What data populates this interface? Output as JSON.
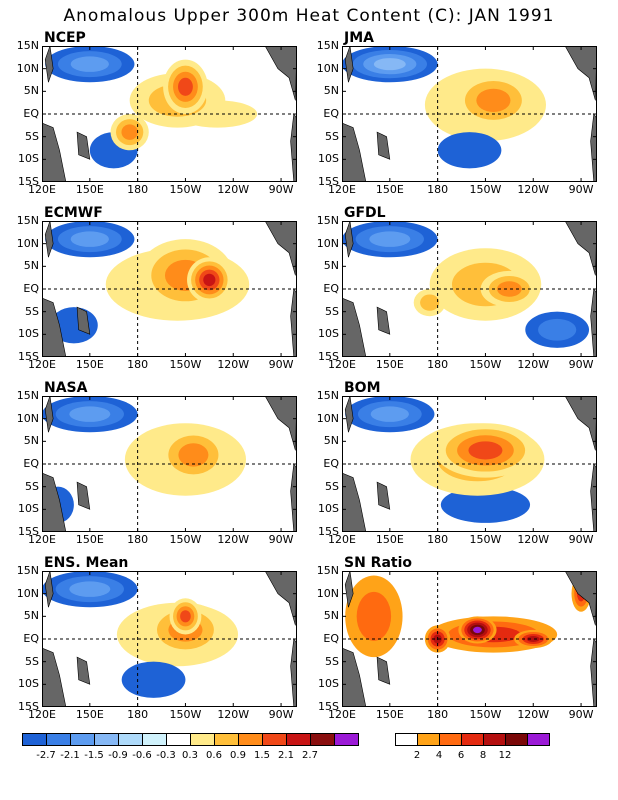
{
  "title": "Anomalous Upper 300m Heat Content (C): JAN 1991",
  "colors": {
    "land": "#666666",
    "neg": [
      "#1e62d6",
      "#3a7fe6",
      "#5d9cf0",
      "#86b8f5",
      "#aedafa",
      "#d0f2fc"
    ],
    "pos": [
      "#ffea8a",
      "#ffbf3a",
      "#ff8c1a",
      "#f04818",
      "#c81414",
      "#8a0f0f"
    ],
    "sn": [
      "#ffffff",
      "#ffa318",
      "#ff6a10",
      "#e42a10",
      "#b40f0f",
      "#7a0808",
      "#9b1ad6"
    ]
  },
  "chart_data": [
    {
      "name": "NCEP",
      "type": "heatmap",
      "lon_range": [
        120,
        280
      ],
      "lat_range": [
        -15,
        15
      ],
      "features": [
        {
          "lon": 210,
          "lat": 6,
          "rx": 14,
          "ry": 6,
          "level": 4
        },
        {
          "lon": 205,
          "lat": 3,
          "rx": 30,
          "ry": 6,
          "level": 2
        },
        {
          "lon": 175,
          "lat": -4,
          "rx": 12,
          "ry": 4,
          "level": 3
        },
        {
          "lon": 230,
          "lat": 0,
          "rx": 25,
          "ry": 3,
          "level": 1
        },
        {
          "lon": 150,
          "lat": 11,
          "rx": 28,
          "ry": 4,
          "level": -3
        },
        {
          "lon": 165,
          "lat": -8,
          "rx": 15,
          "ry": 4,
          "level": -1
        }
      ]
    },
    {
      "name": "JMA",
      "type": "heatmap",
      "lon_range": [
        120,
        280
      ],
      "lat_range": [
        -15,
        15
      ],
      "features": [
        {
          "lon": 215,
          "lat": 3,
          "rx": 25,
          "ry": 6,
          "level": 3
        },
        {
          "lon": 210,
          "lat": 2,
          "rx": 38,
          "ry": 8,
          "level": 1
        },
        {
          "lon": 150,
          "lat": 11,
          "rx": 30,
          "ry": 4,
          "level": -4
        },
        {
          "lon": 200,
          "lat": -8,
          "rx": 20,
          "ry": 4,
          "level": -1
        }
      ]
    },
    {
      "name": "ECMWF",
      "type": "heatmap",
      "lon_range": [
        120,
        280
      ],
      "lat_range": [
        -15,
        15
      ],
      "features": [
        {
          "lon": 225,
          "lat": 2,
          "rx": 14,
          "ry": 5,
          "level": 5
        },
        {
          "lon": 210,
          "lat": 3,
          "rx": 30,
          "ry": 8,
          "level": 3
        },
        {
          "lon": 205,
          "lat": 1,
          "rx": 45,
          "ry": 8,
          "level": 1
        },
        {
          "lon": 150,
          "lat": 11,
          "rx": 28,
          "ry": 4,
          "level": -3
        },
        {
          "lon": 140,
          "lat": -8,
          "rx": 15,
          "ry": 4,
          "level": -1
        }
      ]
    },
    {
      "name": "GFDL",
      "type": "heatmap",
      "lon_range": [
        120,
        280
      ],
      "lat_range": [
        -15,
        15
      ],
      "features": [
        {
          "lon": 225,
          "lat": 0,
          "rx": 18,
          "ry": 4,
          "level": 3
        },
        {
          "lon": 210,
          "lat": 1,
          "rx": 35,
          "ry": 8,
          "level": 2
        },
        {
          "lon": 175,
          "lat": -3,
          "rx": 10,
          "ry": 3,
          "level": 2
        },
        {
          "lon": 150,
          "lat": 11,
          "rx": 30,
          "ry": 4,
          "level": -3
        },
        {
          "lon": 255,
          "lat": -9,
          "rx": 20,
          "ry": 4,
          "level": -2
        }
      ]
    },
    {
      "name": "NASA",
      "type": "heatmap",
      "lon_range": [
        120,
        280
      ],
      "lat_range": [
        -15,
        15
      ],
      "features": [
        {
          "lon": 215,
          "lat": 2,
          "rx": 22,
          "ry": 6,
          "level": 3
        },
        {
          "lon": 210,
          "lat": 1,
          "rx": 38,
          "ry": 8,
          "level": 1
        },
        {
          "lon": 150,
          "lat": 11,
          "rx": 30,
          "ry": 4,
          "level": -3
        },
        {
          "lon": 130,
          "lat": -9,
          "rx": 10,
          "ry": 4,
          "level": -1
        }
      ]
    },
    {
      "name": "BOM",
      "type": "heatmap",
      "lon_range": [
        120,
        280
      ],
      "lat_range": [
        -15,
        15
      ],
      "features": [
        {
          "lon": 210,
          "lat": 3,
          "rx": 32,
          "ry": 6,
          "level": 4
        },
        {
          "lon": 205,
          "lat": 1,
          "rx": 42,
          "ry": 8,
          "level": 2
        },
        {
          "lon": 150,
          "lat": 11,
          "rx": 28,
          "ry": 4,
          "level": -3
        },
        {
          "lon": 210,
          "lat": -9,
          "rx": 28,
          "ry": 4,
          "level": -1
        }
      ]
    },
    {
      "name": "ENS. Mean",
      "type": "heatmap",
      "lon_range": [
        120,
        280
      ],
      "lat_range": [
        -15,
        15
      ],
      "features": [
        {
          "lon": 210,
          "lat": 5,
          "rx": 10,
          "ry": 4,
          "level": 4
        },
        {
          "lon": 210,
          "lat": 2,
          "rx": 25,
          "ry": 6,
          "level": 3
        },
        {
          "lon": 205,
          "lat": 1,
          "rx": 38,
          "ry": 7,
          "level": 1
        },
        {
          "lon": 150,
          "lat": 11,
          "rx": 30,
          "ry": 4,
          "level": -3
        },
        {
          "lon": 190,
          "lat": -9,
          "rx": 20,
          "ry": 4,
          "level": -1
        }
      ]
    },
    {
      "name": "SN Ratio",
      "type": "heatmap",
      "lon_range": [
        120,
        280
      ],
      "lat_range": [
        -15,
        15
      ],
      "features": [
        {
          "lon": 215,
          "lat": 1,
          "rx": 40,
          "ry": 4,
          "level": 3
        },
        {
          "lon": 205,
          "lat": 2,
          "rx": 12,
          "ry": 3,
          "level": 6
        },
        {
          "lon": 140,
          "lat": 5,
          "rx": 18,
          "ry": 9,
          "level": 2
        },
        {
          "lon": 240,
          "lat": 0,
          "rx": 12,
          "ry": 2,
          "level": 4
        },
        {
          "lon": 270,
          "lat": 10,
          "rx": 6,
          "ry": 4,
          "level": 3
        },
        {
          "lon": 180,
          "lat": 0,
          "rx": 8,
          "ry": 3,
          "level": 4
        }
      ]
    }
  ],
  "axes": {
    "lat_labels": [
      "15N",
      "10N",
      "5N",
      "EQ",
      "5S",
      "10S",
      "15S"
    ],
    "lat_values": [
      15,
      10,
      5,
      0,
      -5,
      -10,
      -15
    ],
    "lon_labels": [
      "120E",
      "150E",
      "180",
      "150W",
      "120W",
      "90W"
    ],
    "lon_values": [
      120,
      150,
      180,
      210,
      240,
      270
    ]
  },
  "legend_anom": {
    "ticks": [
      "-2.7",
      "-2.1",
      "-1.5",
      "-0.9",
      "-0.6",
      "-0.3",
      "0.3",
      "0.6",
      "0.9",
      "1.5",
      "2.1",
      "2.7"
    ],
    "colors": [
      "#1e62d6",
      "#3a7fe6",
      "#5d9cf0",
      "#86b8f5",
      "#aedafa",
      "#d0f2fc",
      "#ffffff",
      "#ffea8a",
      "#ffbf3a",
      "#ff8c1a",
      "#f04818",
      "#c81414",
      "#8a0f0f"
    ],
    "last": "#9b1ad6"
  },
  "legend_sn": {
    "ticks": [
      "2",
      "4",
      "6",
      "8",
      "12"
    ],
    "colors": [
      "#ffffff",
      "#ffa318",
      "#ff6a10",
      "#e42a10",
      "#b40f0f",
      "#7a0808",
      "#9b1ad6"
    ]
  }
}
